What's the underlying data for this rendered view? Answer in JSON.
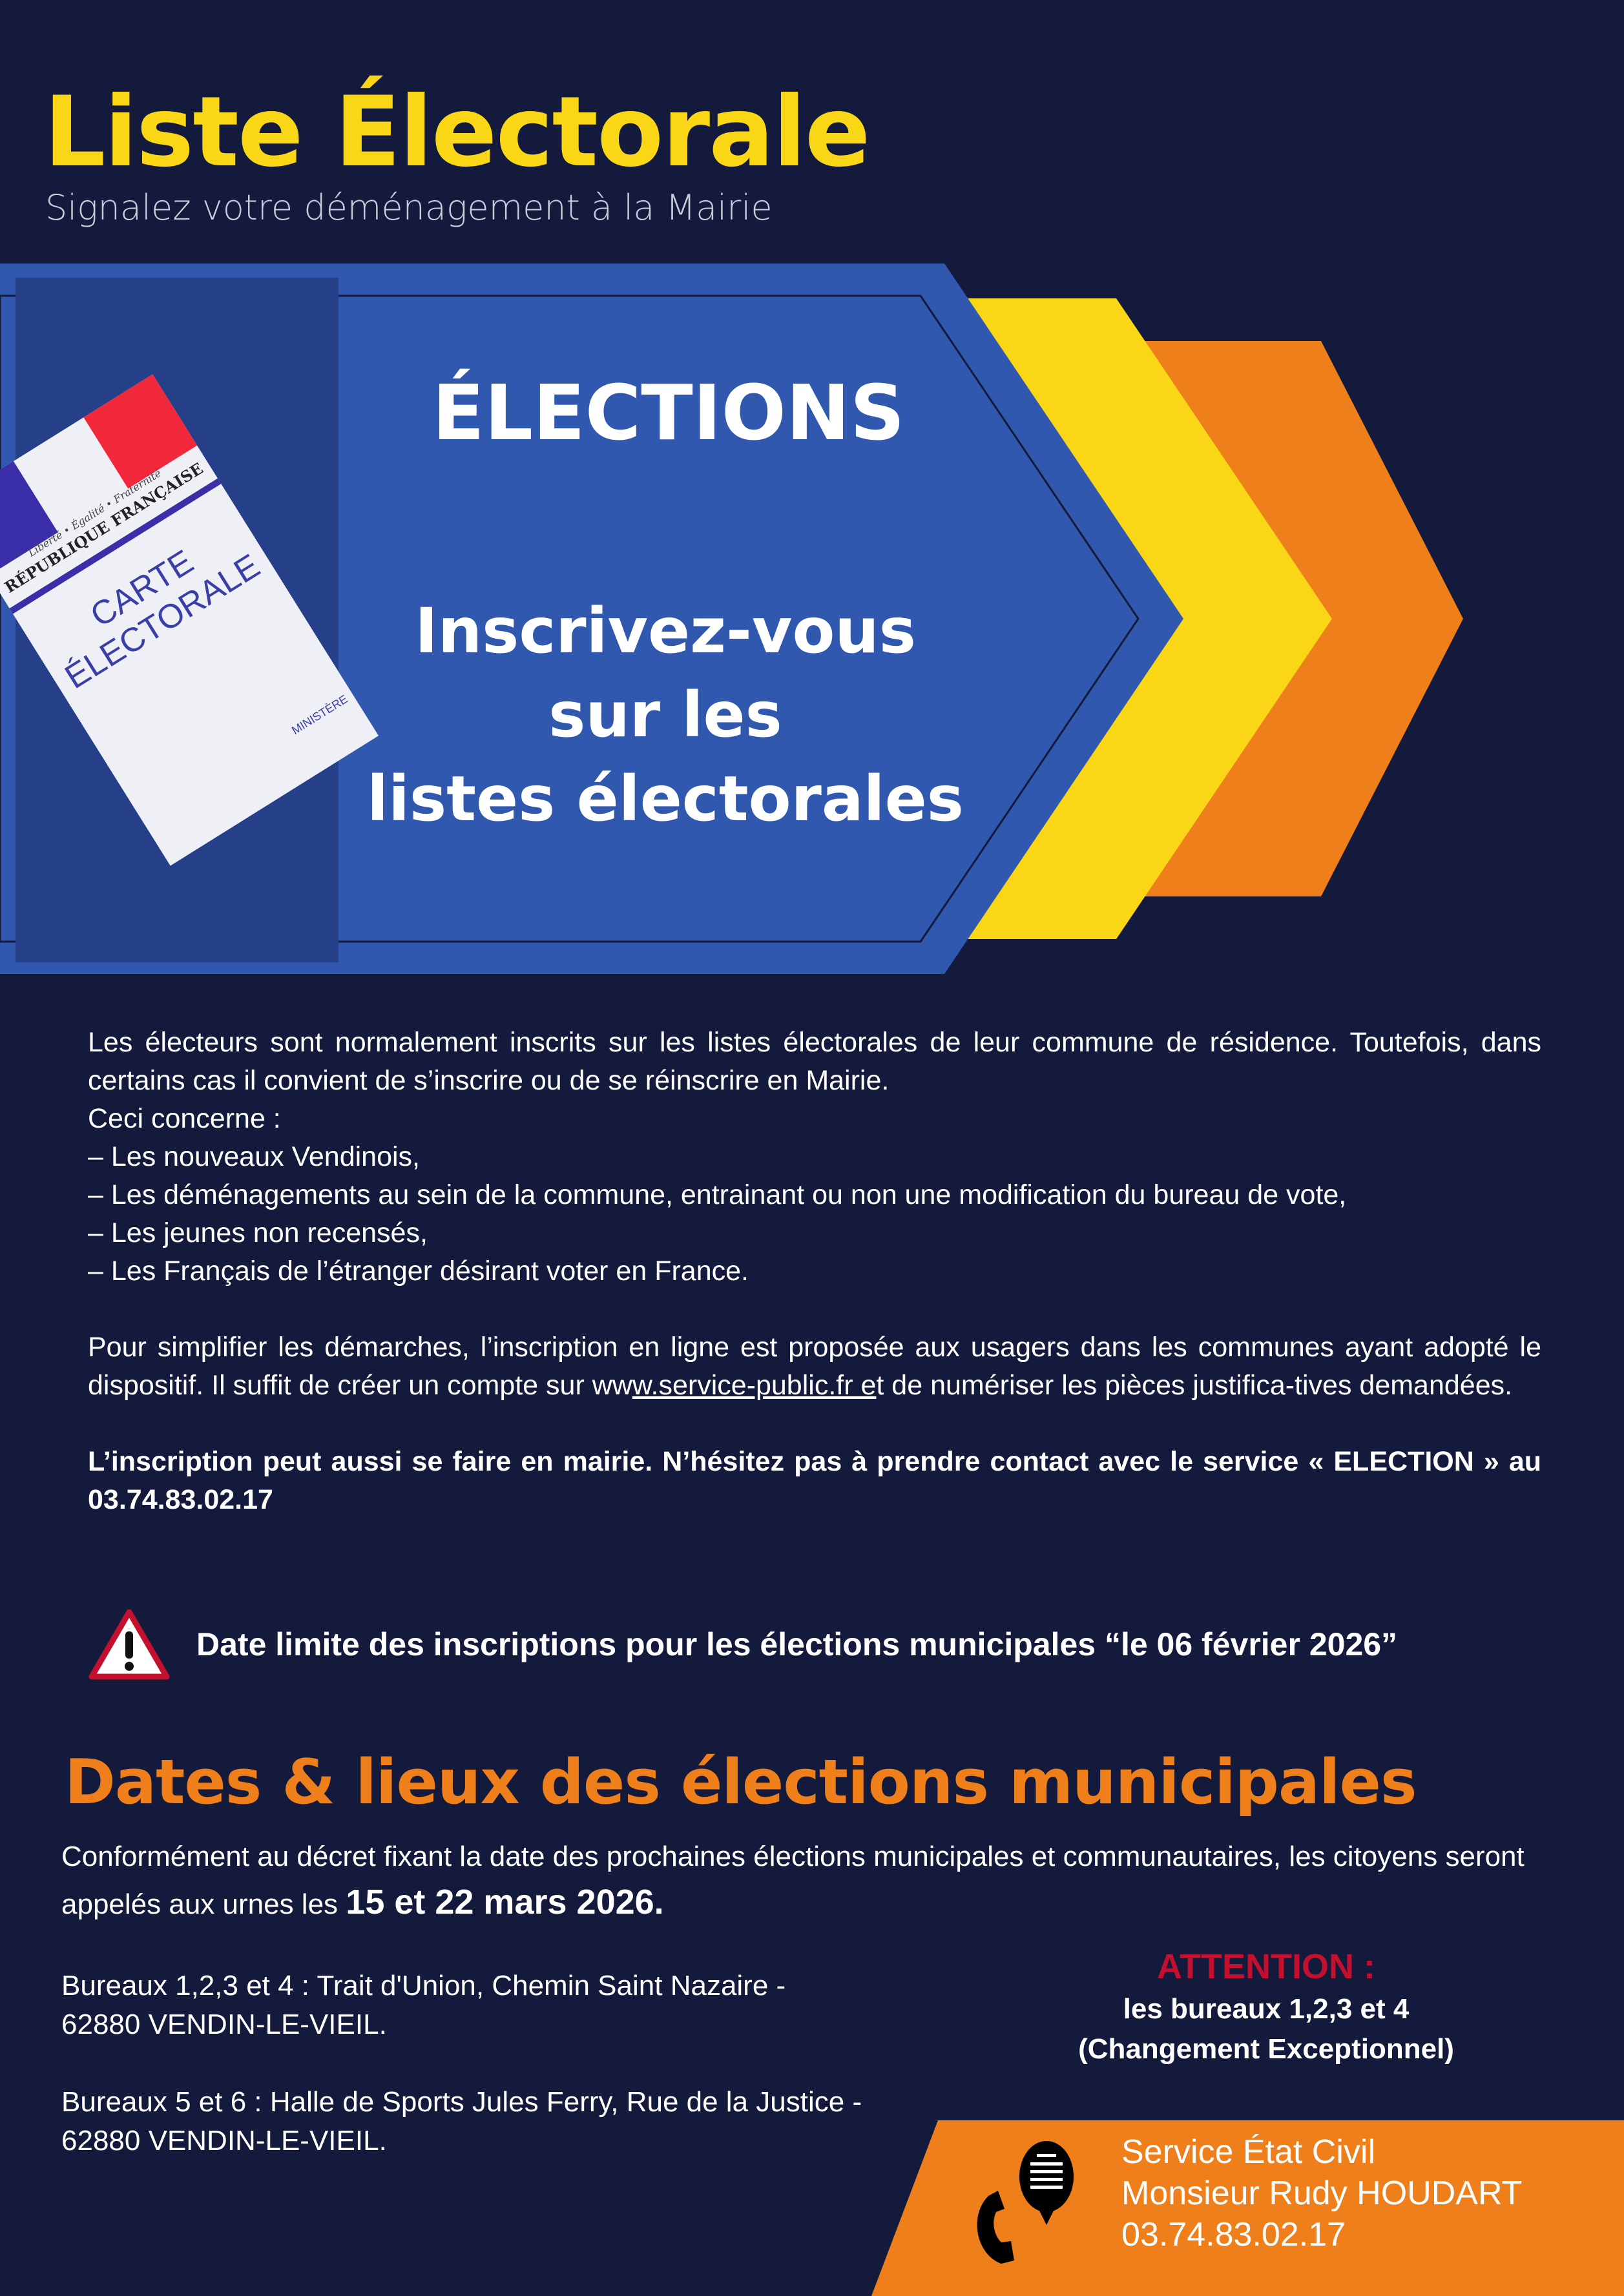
{
  "header": {
    "title": "Liste Électorale",
    "subtitle": "Signalez votre déménagement à la Mairie"
  },
  "banner": {
    "heading": "ÉLECTIONS",
    "lines": [
      "Inscrivez-vous",
      "sur les",
      "listes électorales"
    ],
    "card": {
      "republic": "RÉPUBLIQUE FRANÇAISE",
      "motto": "Liberté • Égalité • Fraternité",
      "label_1": "CARTE",
      "label_2": "ÉLECTORALE",
      "ministry": "MINISTÈRE"
    },
    "colors": {
      "blue": "#2f58ae",
      "yellow": "#f9d616",
      "orange": "#ef7f1a"
    }
  },
  "body": {
    "intro": "Les électeurs sont normalement inscrits sur les listes électorales de leur commune de résidence. Toutefois, dans certains cas il convient de s’inscrire ou de se réinscrire en Mairie.",
    "concerns": "Ceci concerne :",
    "items": [
      "–  Les nouveaux Vendinois,",
      "–  Les déménagements au sein de la commune, entrainant ou non une modification du bureau de vote,",
      "–  Les jeunes non recensés,",
      "–  Les Français de l’étranger désirant voter en France."
    ],
    "online_before": "Pour simplifier les démarches, l’inscription en ligne est proposée aux usagers dans les communes ayant adopté le dispositif. Il suffit de créer un compte sur  ww",
    "online_link": "w.service-public.fr e",
    "online_after": "t de numériser les pièces justifica-tives demandées.",
    "mairie": "L’inscription peut aussi se faire en mairie. N’hésitez pas à prendre contact avec le service « ELECTION » au 03.74.83.02.17"
  },
  "warning": {
    "icon": "warning-triangle-icon",
    "text": "Date limite des inscriptions pour les élections municipales “le 06 février 2026”"
  },
  "elections": {
    "heading": "Dates & lieux des élections municipales",
    "intro": "Conformément au décret fixant la date des prochaines élections municipales et communautaires, les citoyens seront appelés aux urnes les ",
    "dates": "15 et 22 mars 2026.",
    "bureaux": [
      {
        "line1": "Bureaux 1,2,3 et 4 : Trait d'Union, Chemin Saint Nazaire -",
        "line2": "62880 VENDIN-LE-VIEIL."
      },
      {
        "line1": "Bureaux 5 et 6 : Halle de Sports Jules Ferry, Rue de la Justice -",
        "line2": "62880 VENDIN-LE-VIEIL."
      }
    ],
    "attention": {
      "title": "ATTENTION :",
      "line1": "les bureaux 1,2,3 et 4",
      "line2": "(Changement Exceptionnel)",
      "color": "#c2102e"
    }
  },
  "contact": {
    "icon": "phone-chat-icon",
    "service": "Service État Civil",
    "name": "Monsieur Rudy HOUDART",
    "phone": "03.74.83.02.17"
  }
}
